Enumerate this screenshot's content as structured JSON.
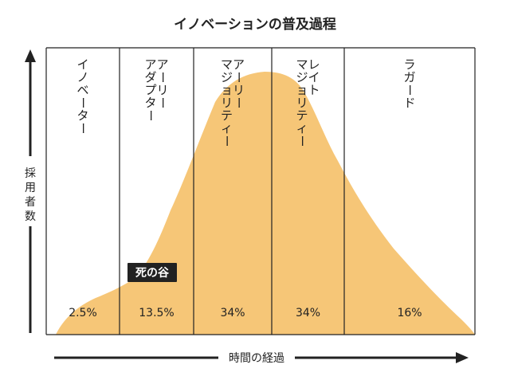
{
  "title": "イノベーションの普及過程",
  "y_axis_label": "採用者数",
  "x_axis_label": "時間の経過",
  "death_valley_label": "死の谷",
  "colors": {
    "curve": "#F6C677",
    "ink": "#222222",
    "badge": "#222222"
  },
  "segments": [
    {
      "name_lines": [
        "イノベーター"
      ],
      "percent": "2.5%"
    },
    {
      "name_lines": [
        "アーリー",
        "アダプター"
      ],
      "percent": "13.5%"
    },
    {
      "name_lines": [
        "アーリー",
        "マジョリティー"
      ],
      "percent": "34%"
    },
    {
      "name_lines": [
        "レイト",
        "マジョリティー"
      ],
      "percent": "34%"
    },
    {
      "name_lines": [
        "ラガード"
      ],
      "percent": "16%"
    }
  ]
}
